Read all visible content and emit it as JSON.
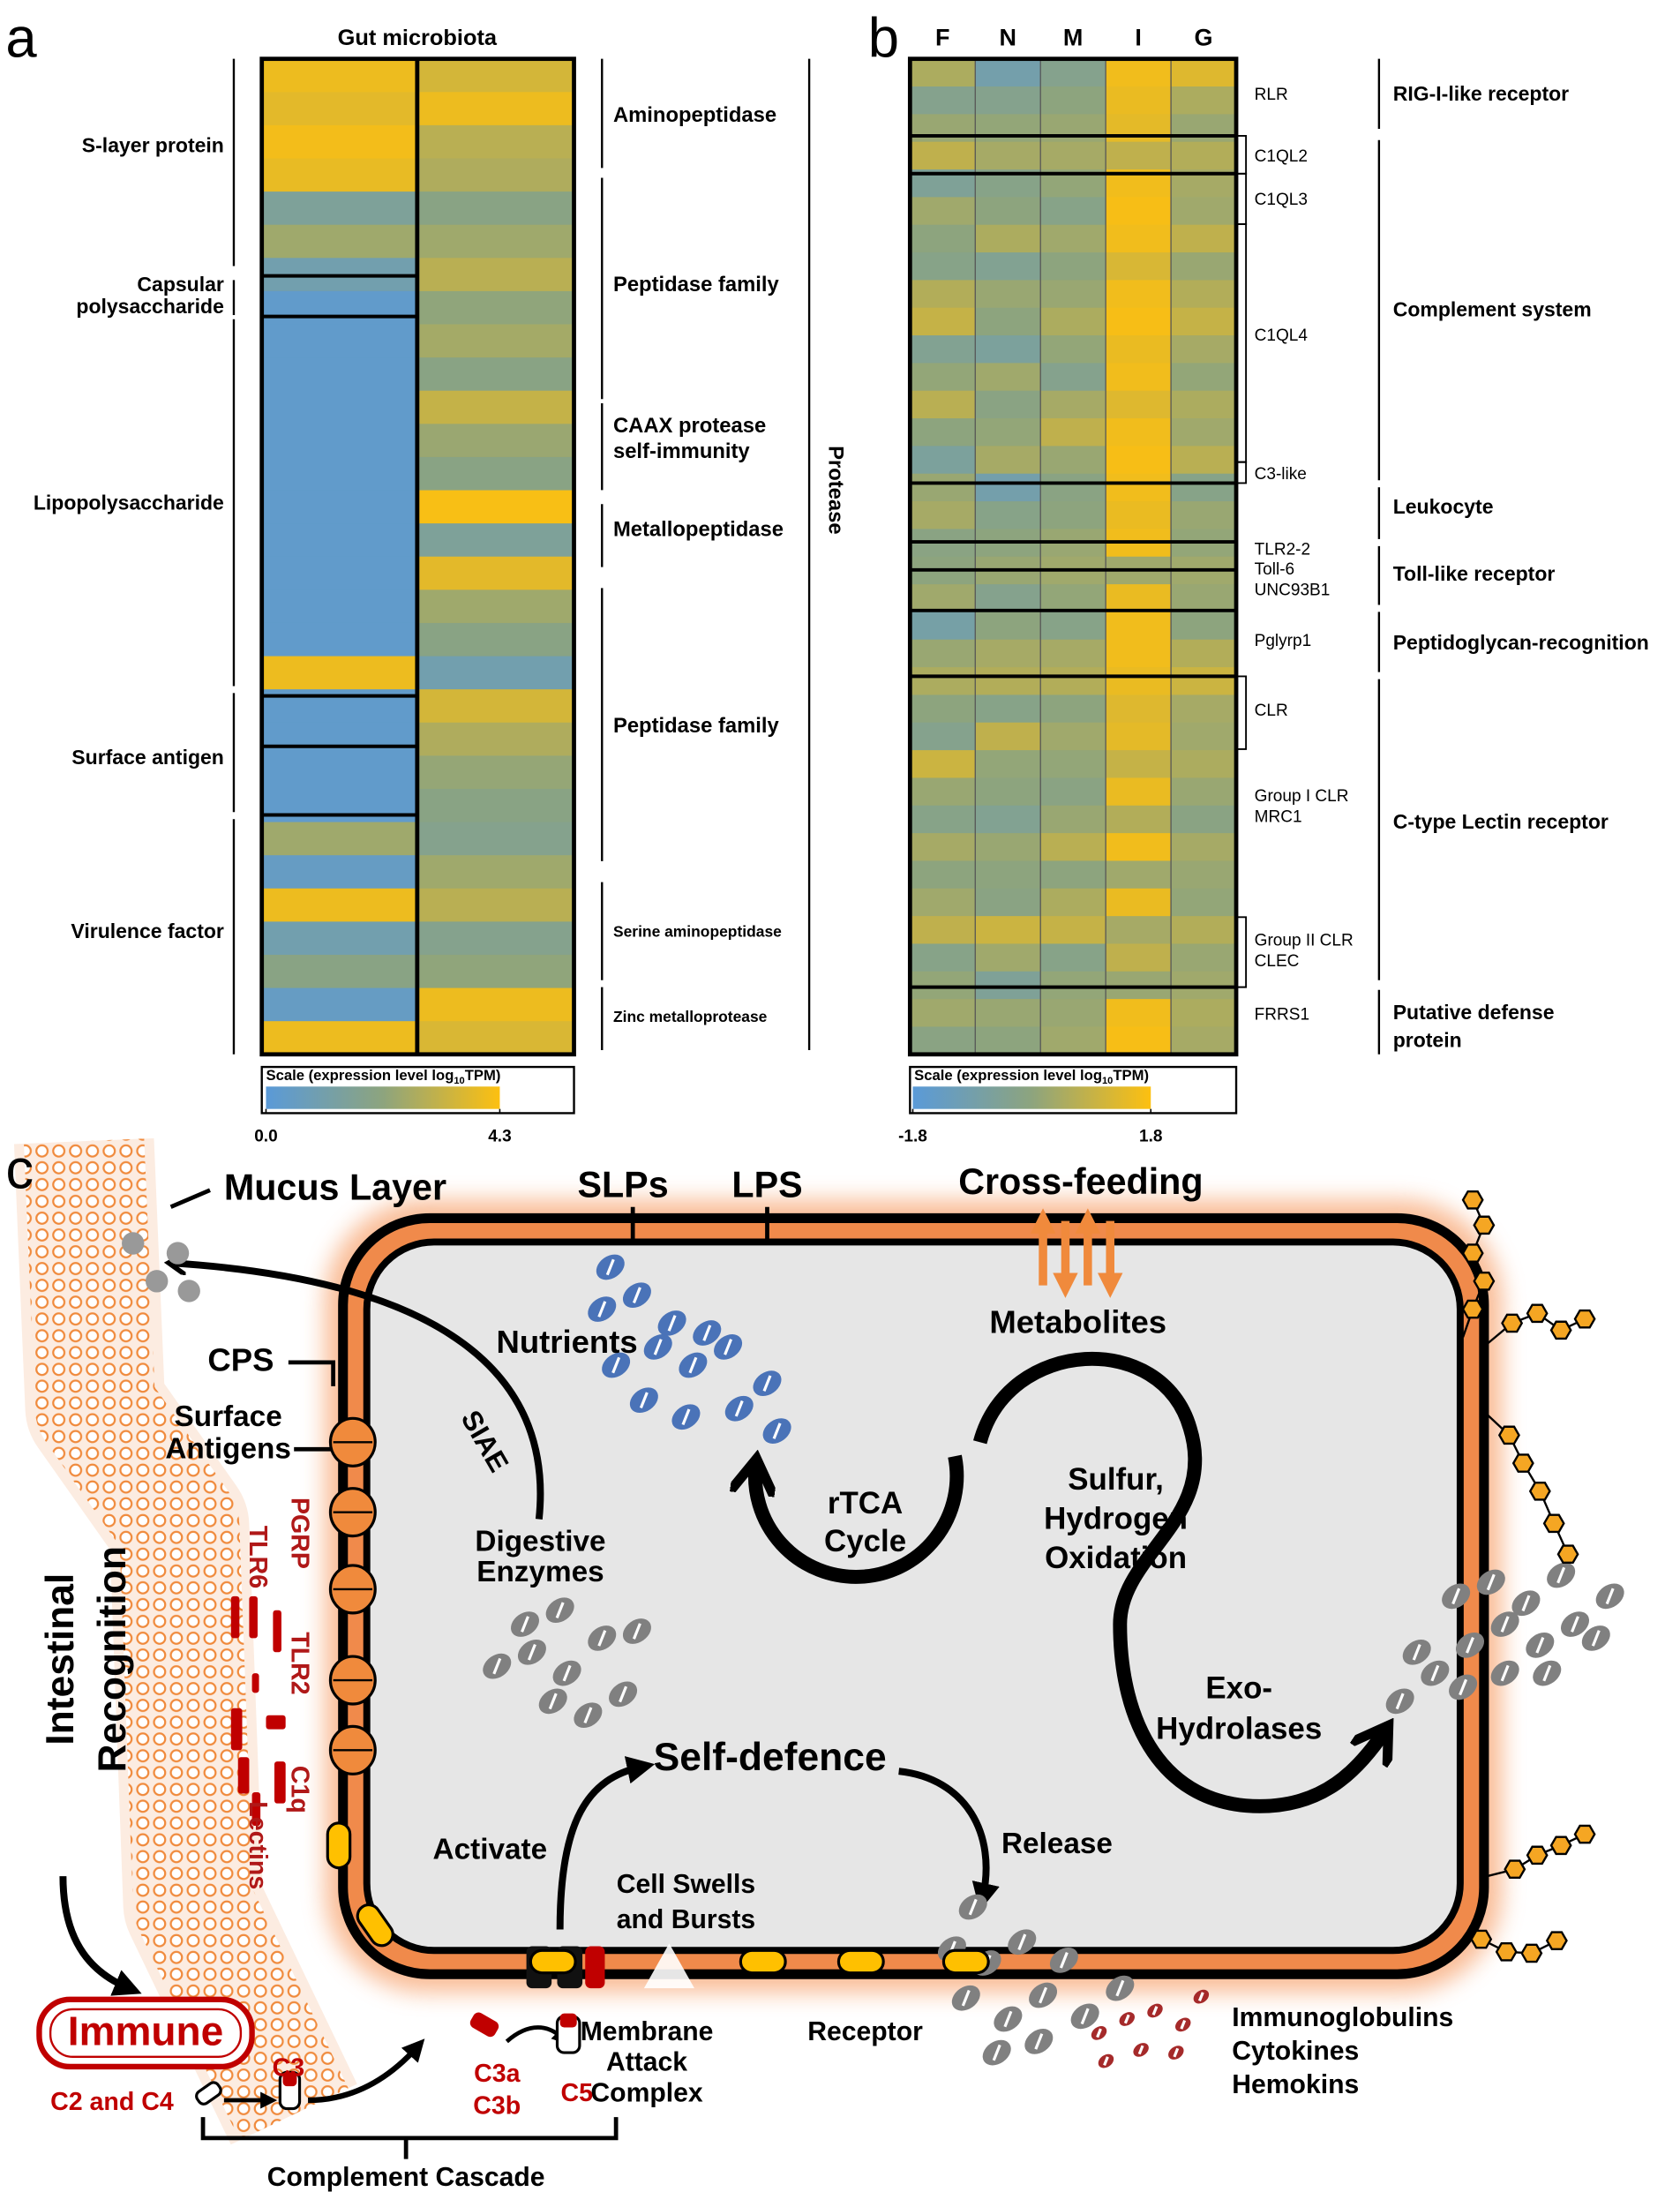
{
  "panel_labels": [
    "a",
    "b",
    "c"
  ],
  "chart_data": [
    {
      "type": "heatmap",
      "title": "Gut microbiota",
      "series": [
        {
          "values": [
            4.0,
            3.8,
            4.1,
            3.9,
            1.5,
            2.5,
            1.0,
            0.3,
            0.3,
            0.3,
            0.3,
            0.3,
            0.3,
            0.3,
            0.3,
            0.3,
            0.3,
            0.3,
            4.0,
            0.3,
            0.3,
            0.3,
            0.3,
            2.5,
            0.5,
            4.0,
            1.0,
            2.0,
            0.5,
            4.0
          ]
        },
        {
          "values": [
            3.5,
            4.0,
            3.0,
            2.8,
            2.0,
            2.5,
            3.0,
            2.2,
            2.6,
            2.0,
            3.2,
            2.4,
            2.0,
            4.2,
            1.5,
            3.8,
            2.5,
            2.0,
            1.0,
            3.5,
            2.8,
            2.3,
            2.0,
            1.8,
            2.5,
            3.0,
            1.8,
            2.2,
            4.0,
            3.6
          ]
        }
      ],
      "left_groups": [
        [
          "S-layer protein"
        ],
        [
          "Capsular",
          "polysaccharide"
        ],
        [
          "Lipopolysaccharide"
        ],
        [
          "Surface antigen"
        ],
        [
          "Virulence factor"
        ]
      ],
      "right_groups": [
        [
          "Aminopeptidase"
        ],
        [
          "Peptidase family"
        ],
        [
          "CAAX protease",
          "self-immunity"
        ],
        [
          "Metallopeptidase"
        ],
        [
          "Peptidase family"
        ],
        [
          "Serine aminopeptidase"
        ],
        [
          "Zinc metalloprotease"
        ]
      ],
      "outer_label": "Protease",
      "colorbar": {
        "label": {
          "text": "Scale (expression level log",
          "sub": "10",
          "tail": "TPM)"
        },
        "zlim": [
          0,
          4.3
        ],
        "ticks": [
          {
            "value": 0,
            "label": "0.0"
          },
          4.3
        ],
        "colors": [
          "#5a9ad8",
          "#8da47e",
          "#fdc010"
        ]
      }
    },
    {
      "type": "heatmap",
      "series": [
        {
          "name": "F",
          "values": [
            0.5,
            -0.3,
            0.2,
            0.8,
            -0.5,
            0.3,
            0,
            -0.2,
            0.6,
            0.9,
            -0.4,
            0.1,
            0.7,
            0,
            -0.6,
            0.2,
            0.4,
            -0.1,
            0,
            0.3,
            -0.8,
            0.2,
            0.5,
            0,
            -0.3,
            1.0,
            0.2,
            -0.2,
            0.4,
            0,
            0.3,
            0.8,
            -0.2,
            0.1,
            0.3,
            -0.1
          ]
        },
        {
          "name": "N",
          "values": [
            -0.9,
            -0.3,
            0.1,
            0.4,
            -0.2,
            0,
            0.5,
            -0.4,
            0.2,
            0,
            -0.6,
            0.3,
            -0.1,
            0.1,
            0.4,
            -0.9,
            -0.2,
            0,
            0.2,
            -0.3,
            0,
            0.4,
            0.6,
            -0.2,
            0.8,
            0.1,
            0,
            -0.4,
            0.2,
            0,
            -0.1,
            1.0,
            0.3,
            -0.5,
            0.2,
            0
          ]
        },
        {
          "name": "M",
          "values": [
            -0.3,
            0,
            0.2,
            0.4,
            0.1,
            -0.2,
            0.3,
            0,
            0.2,
            0.5,
            0.1,
            -0.3,
            0.4,
            0.8,
            0.2,
            -0.1,
            0,
            0.2,
            0.3,
            0.1,
            -0.2,
            0.4,
            0.6,
            0,
            0.3,
            0.1,
            -0.1,
            0.2,
            0.7,
            0,
            0.5,
            0.9,
            -0.2,
            0.1,
            0.2,
            0.3
          ]
        },
        {
          "name": "I",
          "values": [
            1.6,
            1.5,
            1.4,
            0.8,
            1.6,
            1.7,
            1.6,
            1.2,
            1.6,
            1.7,
            1.5,
            1.6,
            1.3,
            1.6,
            1.7,
            1.6,
            1.5,
            1.6,
            0.3,
            1.5,
            1.6,
            1.6,
            1.5,
            1.3,
            1.4,
            0.9,
            1.5,
            0.6,
            1.6,
            0.3,
            1.5,
            0.4,
            0.8,
            0.2,
            1.6,
            1.7
          ]
        },
        {
          "name": "G",
          "values": [
            1.3,
            0.5,
            0.2,
            0.6,
            0.4,
            0.3,
            0.8,
            0.2,
            0.6,
            0.9,
            0.4,
            0.1,
            0.5,
            0.3,
            0.7,
            -0.2,
            0.2,
            0.1,
            0.3,
            0.2,
            0,
            0.6,
            1.0,
            0.4,
            0.3,
            0.5,
            0.2,
            -0.1,
            0.4,
            0.2,
            0.1,
            0.6,
            0.2,
            0.3,
            0.5,
            0.4
          ]
        }
      ],
      "genes": [
        "RLR",
        "C1QL2",
        "C1QL3",
        "C1QL4",
        "C3-like",
        "TLR2-2",
        "Toll-6",
        "UNC93B1",
        "Pglyrp1",
        "CLR",
        "Group I CLR",
        "MRC1",
        "Group II CLR",
        "CLEC",
        "FRRS1"
      ],
      "groups": [
        [
          "RIG-I-like receptor"
        ],
        [
          "Complement system"
        ],
        [
          "Leukocyte"
        ],
        [
          "Toll-like receptor"
        ],
        [
          "Peptidoglycan-recognition"
        ],
        [
          "C-type Lectin receptor"
        ],
        [
          "Putative defense",
          "protein"
        ]
      ],
      "colorbar": {
        "label": {
          "text": "Scale (expression level log",
          "sub": "10",
          "tail": "TPM)"
        },
        "zlim": [
          -1.8,
          1.8
        ],
        "ticks": [
          -1.8,
          1.8
        ],
        "colors": [
          "#5a9ad8",
          "#8da47e",
          "#fdc010"
        ]
      }
    }
  ],
  "diagram": {
    "mucus_layer": "Mucus Layer",
    "slps": "SLPs",
    "lps": "LPS",
    "cross_feeding": "Cross-feeding",
    "metabolites": "Metabolites",
    "nutrients": "Nutrients",
    "cps": "CPS",
    "surface_antigens": [
      "Surface",
      "Antigens"
    ],
    "siae": "SIAE",
    "rtca": [
      "rTCA",
      "Cycle"
    ],
    "sulfur": [
      "Sulfur,",
      "Hydrogen",
      "Oxidation"
    ],
    "digestive_enzymes": [
      "Digestive",
      "Enzymes"
    ],
    "exo_hydrolases": [
      "Exo-",
      "Hydrolases"
    ],
    "self_defence": "Self-defence",
    "activate": "Activate",
    "release": "Release",
    "cell_swells": [
      "Cell Swells",
      "and Bursts"
    ],
    "mac": [
      "Membrane",
      "Attack",
      "Complex"
    ],
    "receptor": "Receptor",
    "effectors": [
      "Immunoglobulins",
      "Cytokines",
      "Hemokins"
    ],
    "immune": "Immune",
    "c2_c4": "C2 and C4",
    "c3": "C3",
    "c3a_c3b": [
      "C3a",
      "C3b"
    ],
    "c5": "C5",
    "complement_cascade": "Complement Cascade",
    "intestinal_recognition": [
      "Intestinal",
      "Recognition"
    ],
    "receptors": [
      "TLR6",
      "PGRP",
      "TLR2",
      "C1q",
      "Lectins"
    ]
  }
}
